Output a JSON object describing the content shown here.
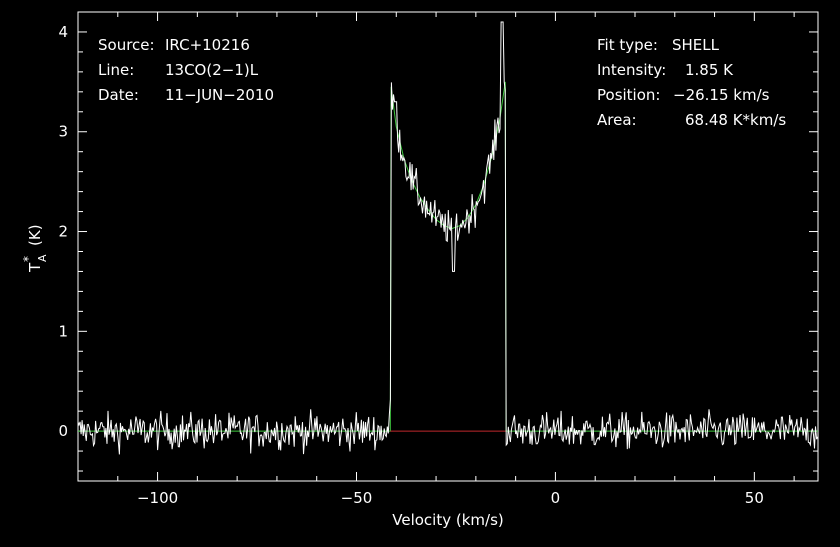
{
  "chart_data": {
    "type": "line",
    "title": "",
    "xlabel": "Velocity (km/s)",
    "ylabel_main": "T",
    "ylabel_sub": "A",
    "ylabel_sup": "*",
    "ylabel_unit": "(K)",
    "xlim": [
      -120,
      66
    ],
    "ylim": [
      -0.5,
      4.2
    ],
    "x_ticks": [
      -100,
      -50,
      0,
      50
    ],
    "x_tick_labels": [
      "−100",
      "−50",
      "0",
      "50"
    ],
    "y_ticks": [
      0,
      1,
      2,
      3,
      4
    ],
    "y_tick_labels": [
      "0",
      "1",
      "2",
      "3",
      "4"
    ],
    "grid": false,
    "info_left": [
      {
        "key": "Source:",
        "value": "IRC+10216"
      },
      {
        "key": "Line:",
        "value": "13CO(2−1)L"
      },
      {
        "key": "Date:",
        "value": "11−JUN−2010"
      }
    ],
    "info_right": [
      {
        "key": "Fit type:",
        "value": "SHELL"
      },
      {
        "key": "Intensity:",
        "value": "1.85 K"
      },
      {
        "key": "Position:",
        "value": "−26.15 km/s"
      },
      {
        "key": "Area:",
        "value": "68.48 K*km/s"
      }
    ],
    "fit": {
      "color": "#3ec83e",
      "x": [
        -120,
        -41.5,
        -41.3,
        -40,
        -38,
        -36,
        -34,
        -32,
        -30,
        -28,
        -26,
        -24,
        -22,
        -20,
        -18,
        -16,
        -14,
        -12.6,
        -12.4,
        66
      ],
      "y": [
        0,
        0,
        3.45,
        3.05,
        2.72,
        2.5,
        2.34,
        2.22,
        2.12,
        2.06,
        2.03,
        2.06,
        2.14,
        2.27,
        2.47,
        2.75,
        3.12,
        3.5,
        0,
        0
      ]
    },
    "baseline_window": {
      "color": "#c0282c",
      "x": [
        -41.5,
        -12.5
      ],
      "y": 0
    },
    "spectrum": {
      "color": "#ffffff",
      "noise_rms": 0.09,
      "peaks": [
        {
          "x": -40.2,
          "y": 3.3
        },
        {
          "x": -25.5,
          "y": 1.6
        },
        {
          "x": -13.5,
          "y": 4.1
        }
      ]
    }
  }
}
